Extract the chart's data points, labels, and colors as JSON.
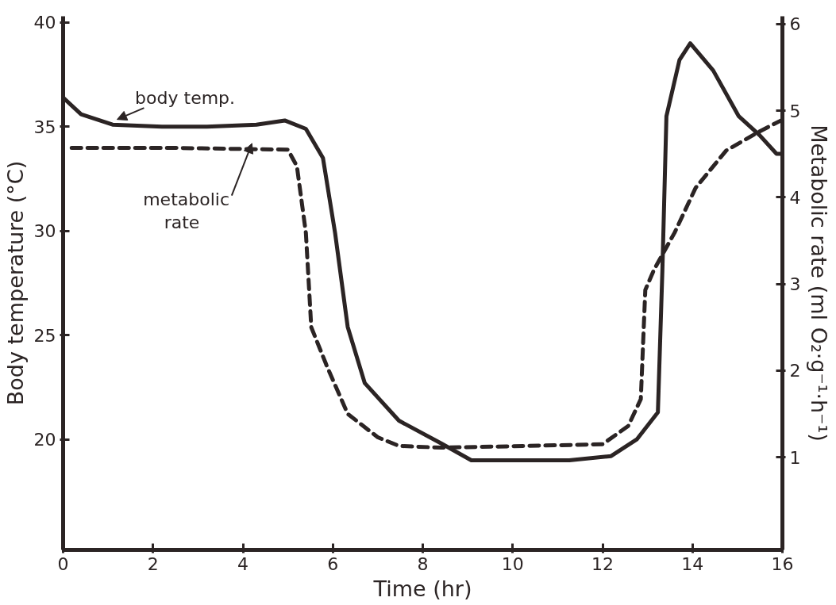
{
  "chart_data": {
    "type": "line",
    "xlabel": "Time (hr)",
    "ylabel": "Body temperature (°C)",
    "y2label": "Metabolic rate (ml O₂·g⁻¹·h⁻¹)",
    "xlim": [
      0,
      16
    ],
    "xticks": [
      0,
      2,
      4,
      6,
      8,
      10,
      12,
      14,
      16
    ],
    "ylim": [
      14.7,
      40.3
    ],
    "yticks": [
      20,
      25,
      30,
      35,
      40
    ],
    "y2lim": [
      -0.07,
      6.09
    ],
    "y2ticks": [
      1,
      2,
      3,
      4,
      5,
      6
    ],
    "marker": "none",
    "series": [
      {
        "color": "#2b2424",
        "line_style": "solid",
        "x": [
          0,
          0.4,
          1.1,
          2.2,
          3.2,
          4.3,
          4.93,
          5.4,
          5.78,
          6.05,
          6.33,
          6.71,
          7.47,
          8.42,
          9.08,
          10.2,
          11.26,
          12.19,
          12.76,
          13.23,
          13.33,
          13.42,
          13.71,
          13.95,
          14.46,
          15.03,
          15.49,
          15.87,
          16
        ],
        "values": [
          36.4,
          35.6,
          35.1,
          35.0,
          35.0,
          35.1,
          35.3,
          34.9,
          33.5,
          29.9,
          25.4,
          22.7,
          20.9,
          19.8,
          19.0,
          19.0,
          19.0,
          19.2,
          20.0,
          21.3,
          28.1,
          35.5,
          38.2,
          39.0,
          37.7,
          35.5,
          34.6,
          33.7,
          33.7
        ]
      },
      {
        "color": "#2b2424",
        "line_style": "dashed",
        "axis": "y2",
        "x": [
          0.19,
          2.5,
          5.0,
          5.2,
          5.4,
          5.52,
          5.86,
          6.33,
          7.0,
          7.47,
          8.42,
          10.31,
          12.0,
          12.57,
          12.85,
          12.95,
          13.14,
          13.6,
          14.07,
          14.75,
          15.49,
          15.98
        ],
        "values": [
          4.57,
          4.57,
          4.55,
          4.36,
          3.59,
          2.5,
          2.06,
          1.5,
          1.23,
          1.13,
          1.11,
          1.13,
          1.15,
          1.36,
          1.67,
          2.93,
          3.16,
          3.59,
          4.11,
          4.54,
          4.76,
          4.89
        ]
      }
    ],
    "annotations": [
      {
        "text": "body temp.",
        "x": 1.2,
        "y": 35.1
      },
      {
        "text": "metabolic\nrate",
        "x": 4.2,
        "y": 33.9
      }
    ]
  }
}
